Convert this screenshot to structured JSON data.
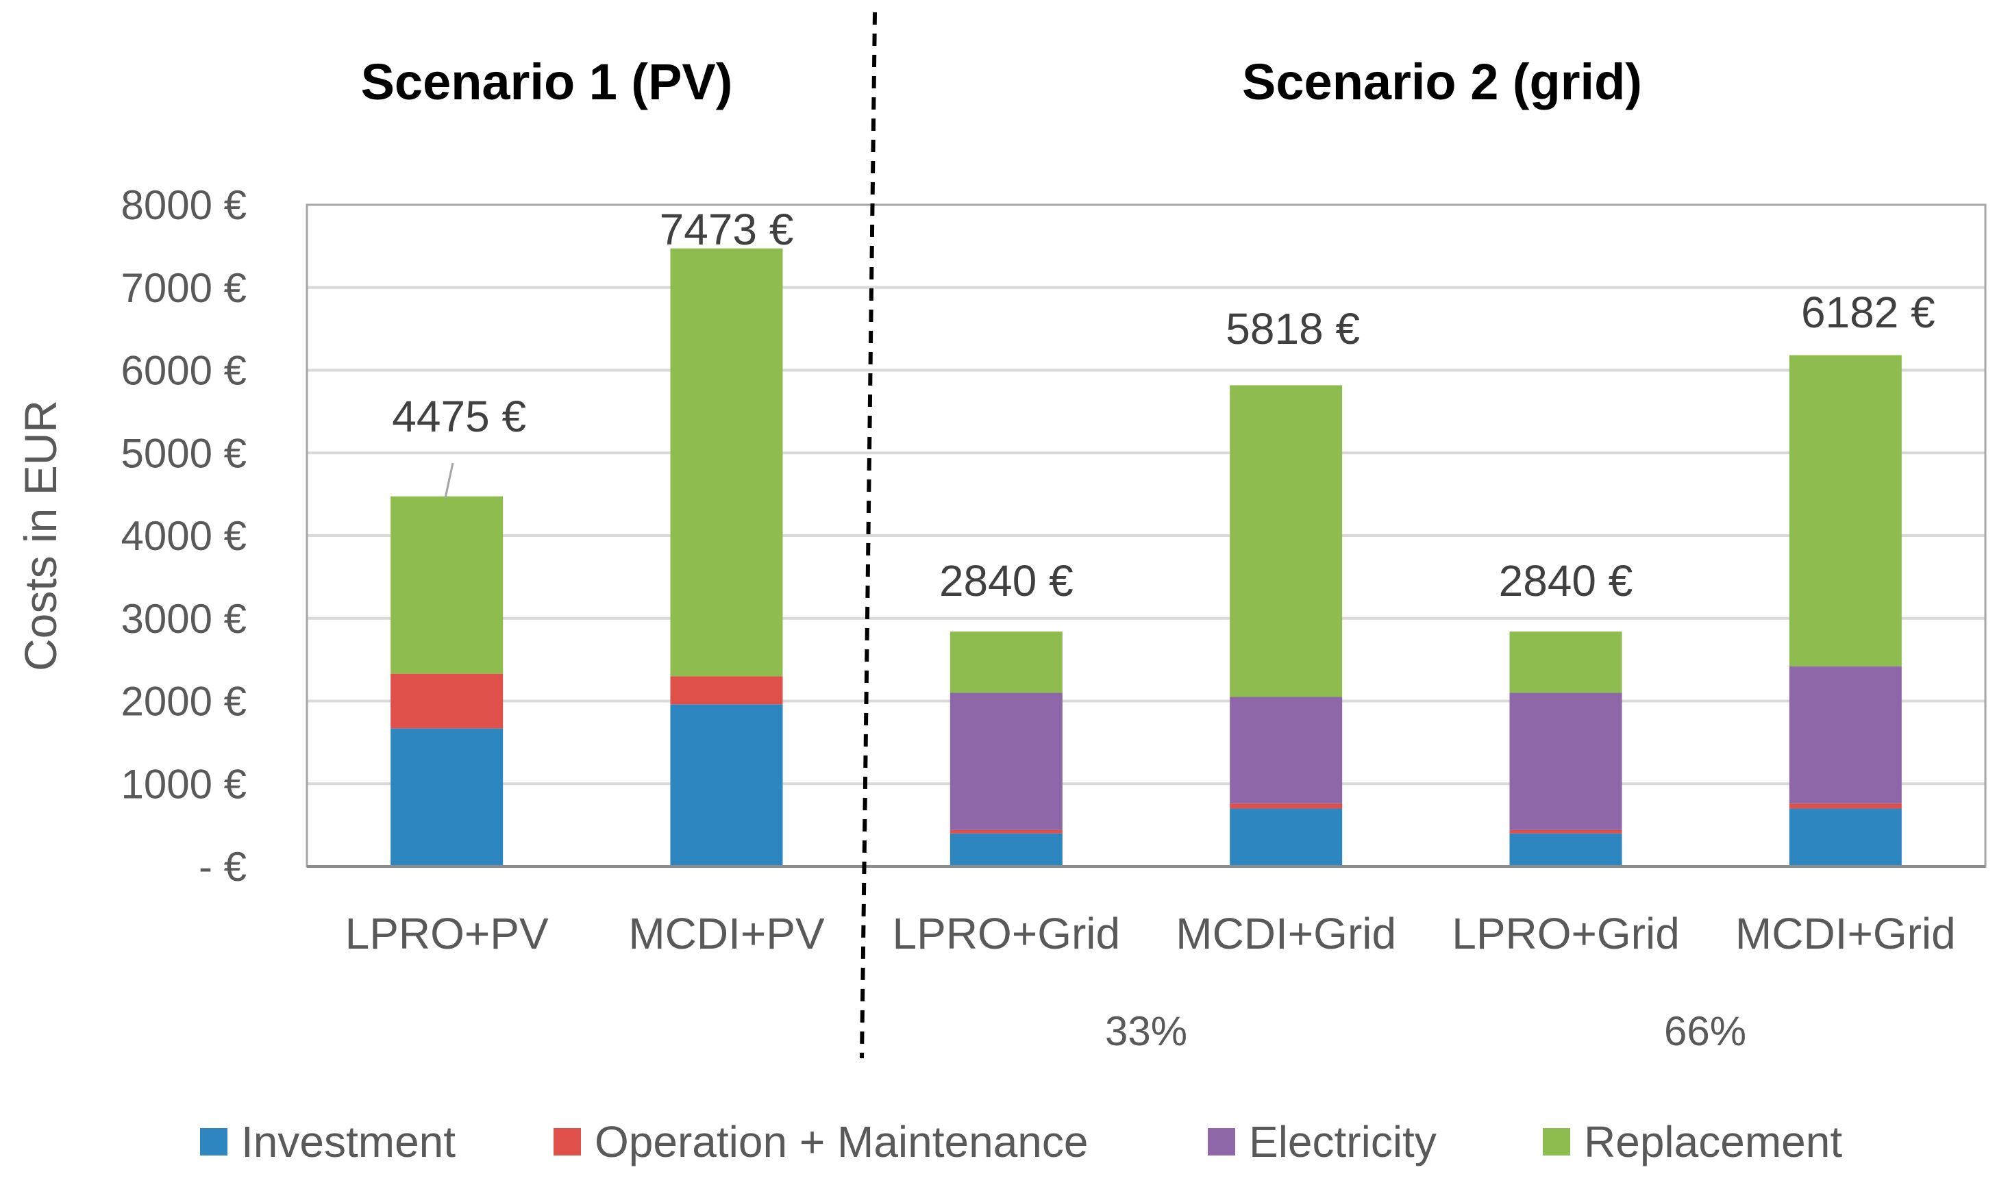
{
  "chart_data": {
    "type": "bar",
    "stacked": true,
    "categories": [
      "LPRO+PV",
      "MCDI+PV",
      "LPRO+Grid",
      "MCDI+Grid",
      "LPRO+Grid",
      "MCDI+Grid"
    ],
    "series": [
      {
        "name": "Investment",
        "color": "#2E86C1",
        "values": [
          1670,
          1960,
          400,
          700,
          400,
          700
        ]
      },
      {
        "name": "Operation + Maintenance",
        "color": "#E0504A",
        "values": [
          660,
          340,
          40,
          60,
          40,
          60
        ]
      },
      {
        "name": "Electricity",
        "color": "#8E67A8",
        "values": [
          0,
          0,
          1660,
          1290,
          1660,
          1660
        ]
      },
      {
        "name": "Replacement",
        "color": "#8FBC4E",
        "values": [
          2145,
          5173,
          740,
          3768,
          740,
          3762
        ]
      }
    ],
    "totals": [
      4475,
      7473,
      2840,
      5818,
      2840,
      6182
    ],
    "total_labels": [
      "4475 €",
      "7473 €",
      "2840 €",
      "5818 €",
      "2840 €",
      "6182 €"
    ],
    "ylabel": "Costs in EUR",
    "ylim": [
      0,
      8000
    ],
    "yticks": [
      0,
      1000,
      2000,
      3000,
      4000,
      5000,
      6000,
      7000,
      8000
    ],
    "ytick_labels": [
      "-   €",
      "1000 €",
      "2000 €",
      "3000 €",
      "4000 €",
      "5000 €",
      "6000 €",
      "7000 €",
      "8000 €"
    ],
    "grid": true,
    "scenario_titles": [
      "Scenario 1 (PV)",
      "Scenario 2 (grid)"
    ],
    "group_labels": [
      "33%",
      "66%"
    ],
    "legend_position": "bottom"
  }
}
